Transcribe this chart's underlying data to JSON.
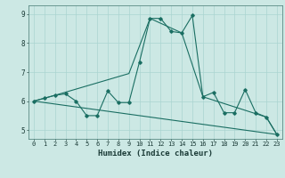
{
  "xlabel": "Humidex (Indice chaleur)",
  "background_color": "#cce8e4",
  "grid_color": "#aad4d0",
  "line_color": "#1a6e62",
  "xlim": [
    -0.5,
    23.5
  ],
  "ylim": [
    4.7,
    9.3
  ],
  "yticks": [
    5,
    6,
    7,
    8,
    9
  ],
  "xticks": [
    0,
    1,
    2,
    3,
    4,
    5,
    6,
    7,
    8,
    9,
    10,
    11,
    12,
    13,
    14,
    15,
    16,
    17,
    18,
    19,
    20,
    21,
    22,
    23
  ],
  "line1_x": [
    0,
    1,
    2,
    3,
    4,
    5,
    6,
    7,
    8,
    9,
    10,
    11,
    12,
    13,
    14,
    15,
    16,
    17,
    18,
    19,
    20,
    21,
    22,
    23
  ],
  "line1_y": [
    6.0,
    6.1,
    6.2,
    6.25,
    6.0,
    5.5,
    5.5,
    6.35,
    5.95,
    5.95,
    7.35,
    8.85,
    8.85,
    8.4,
    8.35,
    8.95,
    6.15,
    6.3,
    5.6,
    5.6,
    6.4,
    5.6,
    5.45,
    4.85
  ],
  "line2_x": [
    0,
    23
  ],
  "line2_y": [
    6.0,
    4.85
  ],
  "line3_x": [
    0,
    2,
    9,
    11,
    14,
    16,
    22,
    23
  ],
  "line3_y": [
    6.0,
    6.2,
    6.95,
    8.85,
    8.35,
    6.15,
    5.45,
    4.85
  ]
}
